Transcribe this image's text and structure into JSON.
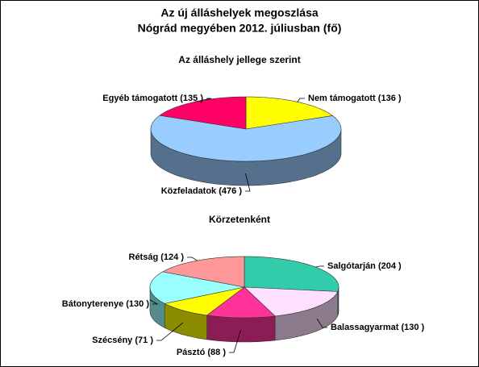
{
  "title_lines": [
    "Az új álláshelyek megoszlása",
    "Nógrád megyében 2012. júliusban (fő)"
  ],
  "chart_data": [
    {
      "type": "pie",
      "title": "Az álláshely jellege szerint",
      "categories": [
        "Nem támogatott",
        "Közfeladatok",
        "Egyéb támogatott "
      ],
      "values": [
        136,
        476,
        135
      ],
      "value_labels": [
        "(136 )",
        "(476 )",
        "(135 )"
      ],
      "colors": [
        "#ffff00",
        "#99ccff",
        "#ff0066"
      ]
    },
    {
      "type": "pie",
      "title": "Körzetenként",
      "categories": [
        "Salgótarján",
        "Balassagyarmat",
        "Pásztó",
        "Szécsény",
        "Bátonyterenye",
        "Rétság"
      ],
      "values": [
        204,
        130,
        88,
        71,
        130,
        124
      ],
      "value_labels": [
        "(204 )",
        "(130 )",
        "(88 )",
        "(71 )",
        "(130 )",
        "(124 )"
      ],
      "colors": [
        "#33ccaa",
        "#ffe0ff",
        "#ff3399",
        "#ffff00",
        "#99ffff",
        "#ff9999"
      ]
    }
  ]
}
